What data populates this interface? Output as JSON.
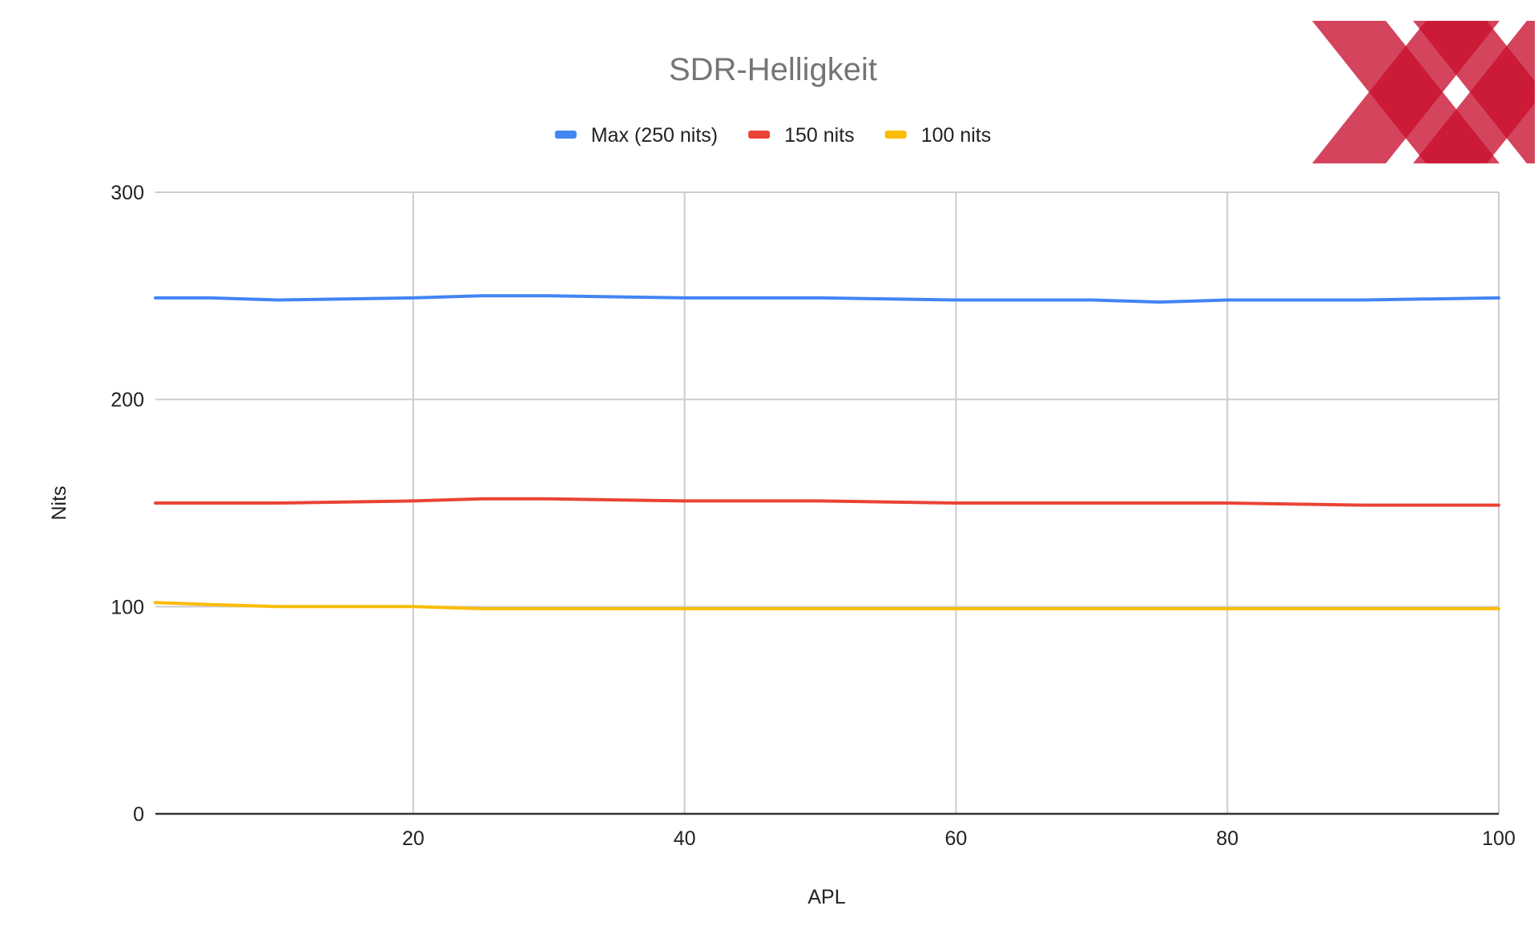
{
  "chart_data": {
    "type": "line",
    "title": "SDR-Helligkeit",
    "xlabel": "APL",
    "ylabel": "Nits",
    "x": [
      1,
      5,
      10,
      20,
      25,
      30,
      40,
      50,
      60,
      70,
      75,
      80,
      90,
      100
    ],
    "xlim": [
      1,
      100
    ],
    "ylim": [
      0,
      300
    ],
    "x_ticks": [
      "20",
      "40",
      "60",
      "80",
      "100"
    ],
    "y_ticks": [
      "0",
      "100",
      "200",
      "300"
    ],
    "grid": true,
    "legend_position": "top",
    "series": [
      {
        "name": "Max (250 nits)",
        "color": "#4285f4",
        "values": [
          249,
          249,
          248,
          249,
          250,
          250,
          249,
          249,
          248,
          248,
          247,
          248,
          248,
          249
        ]
      },
      {
        "name": "150 nits",
        "color": "#ea4335",
        "values": [
          150,
          150,
          150,
          151,
          152,
          152,
          151,
          151,
          150,
          150,
          150,
          150,
          149,
          149
        ]
      },
      {
        "name": "100 nits",
        "color": "#fbbc04",
        "values": [
          102,
          101,
          100,
          100,
          99,
          99,
          99,
          99,
          99,
          99,
          99,
          99,
          99,
          99
        ]
      }
    ]
  },
  "logo": {
    "name": "xx-logo",
    "color": "#c8102e"
  }
}
